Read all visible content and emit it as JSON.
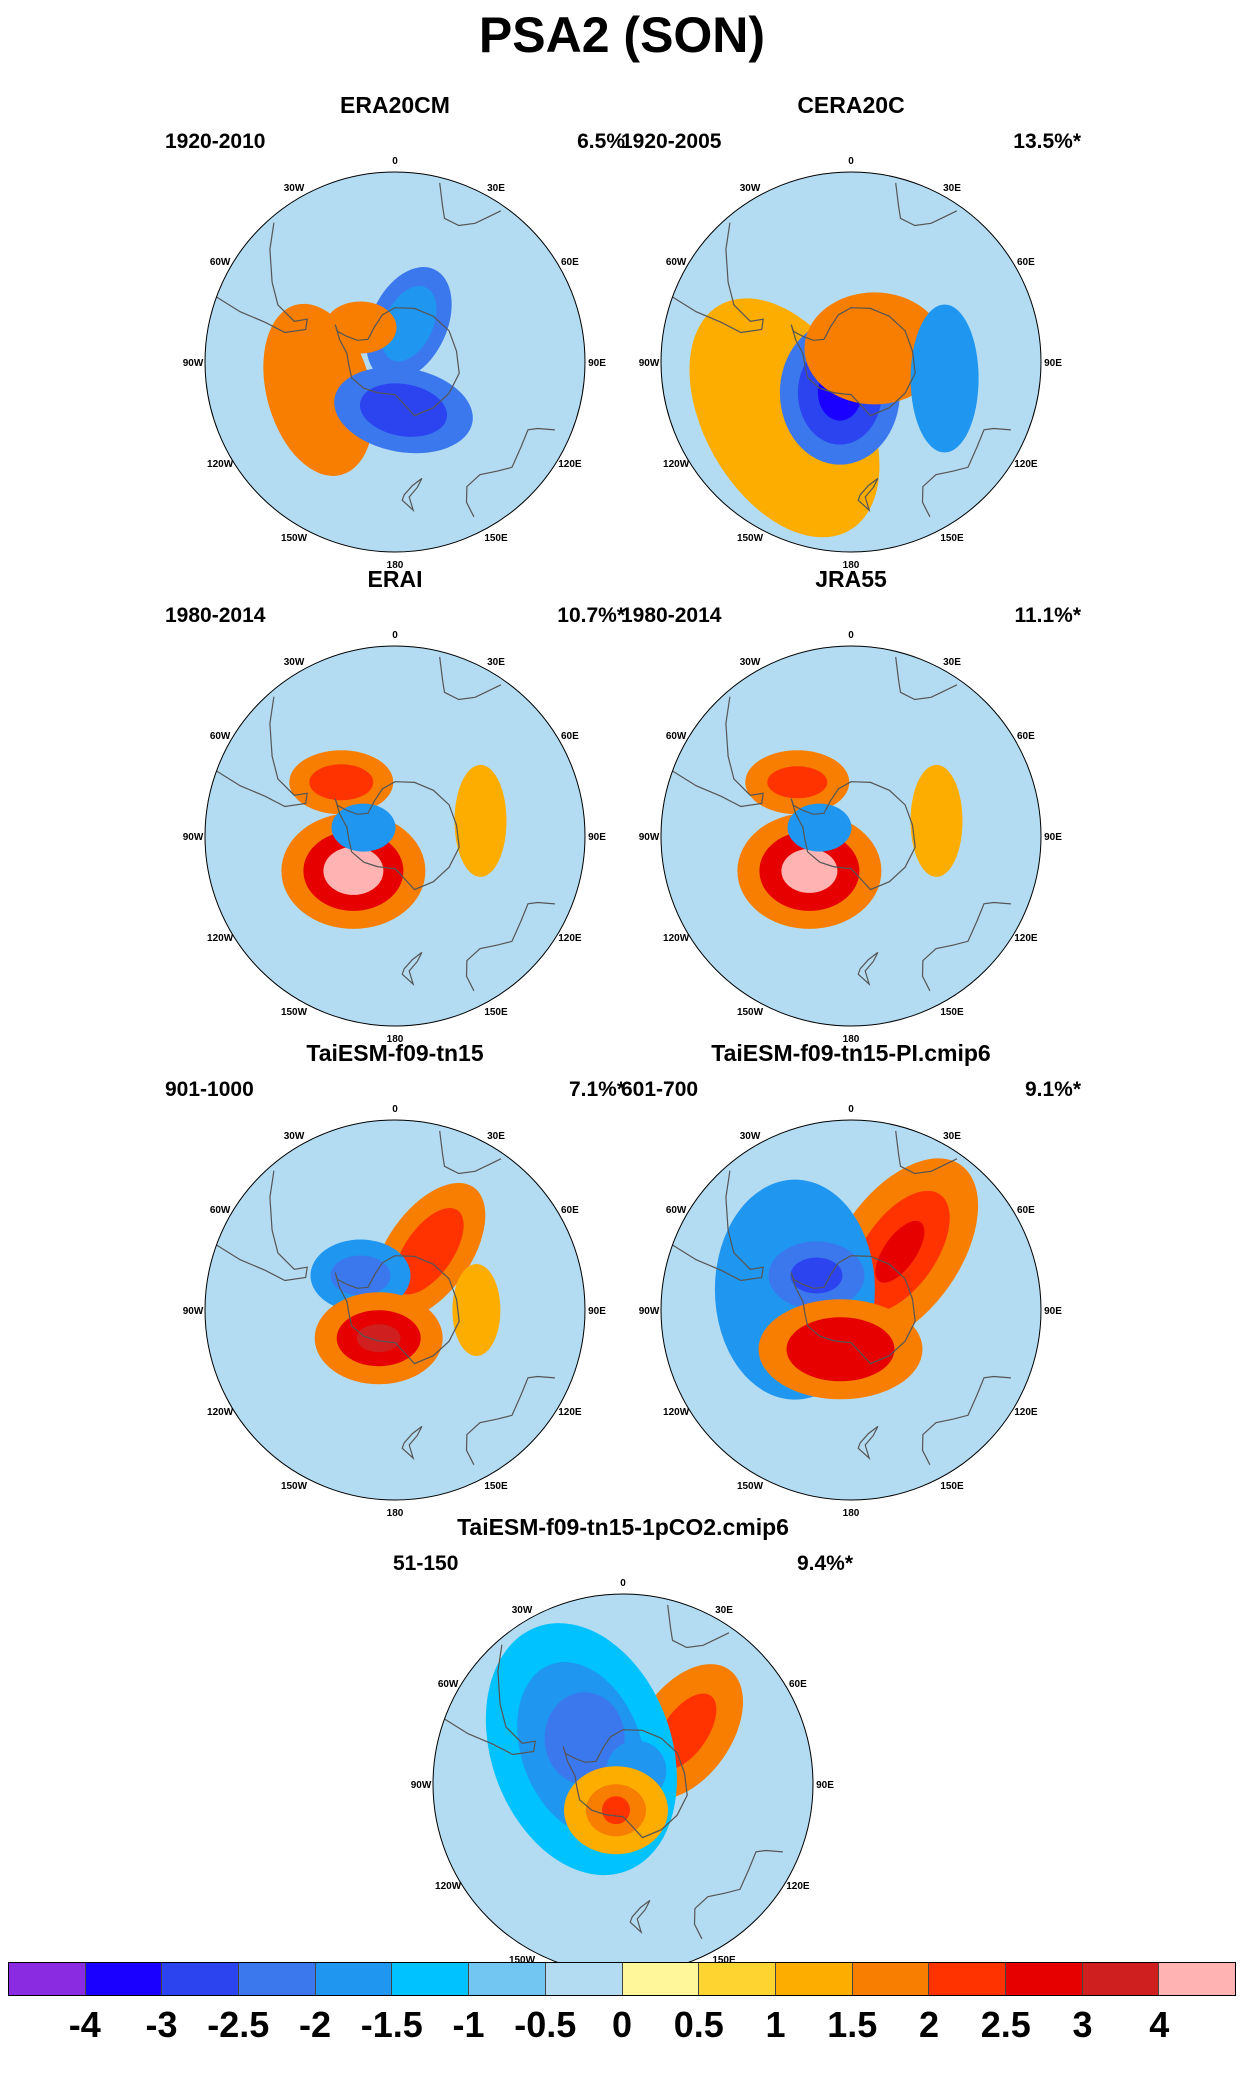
{
  "title": "PSA2 (SON)",
  "panels": [
    {
      "name": "ERA20CM",
      "period": "1920-2010",
      "variance": "6.5%",
      "blobs": [
        {
          "lat": -75,
          "lon": 20,
          "rx": 38,
          "ry": 60,
          "rot": 25,
          "level": 3
        },
        {
          "lat": -75,
          "lon": 20,
          "rx": 24,
          "ry": 40,
          "rot": 25,
          "level": 4
        },
        {
          "lat": -72,
          "lon": -45,
          "rx": 36,
          "ry": 26,
          "rot": 0,
          "level": 11
        },
        {
          "lat": -60,
          "lon": -110,
          "rx": 52,
          "ry": 88,
          "rot": -15,
          "level": 11
        },
        {
          "lat": -72,
          "lon": 170,
          "rx": 70,
          "ry": 42,
          "rot": 10,
          "level": 3
        },
        {
          "lat": -72,
          "lon": 170,
          "rx": 44,
          "ry": 26,
          "rot": 10,
          "level": 2
        }
      ]
    },
    {
      "name": "CERA20C",
      "period": "1920-2005",
      "variance": "13.5%*",
      "blobs": [
        {
          "lat": -58,
          "lon": -130,
          "rx": 80,
          "ry": 130,
          "rot": -30,
          "level": 10
        },
        {
          "lat": -78,
          "lon": -160,
          "rx": 60,
          "ry": 72,
          "rot": 0,
          "level": 3
        },
        {
          "lat": -78,
          "lon": -160,
          "rx": 42,
          "ry": 52,
          "rot": 0,
          "level": 2
        },
        {
          "lat": -78,
          "lon": -160,
          "rx": 22,
          "ry": 28,
          "rot": 0,
          "level": 1
        },
        {
          "lat": -80,
          "lon": 60,
          "rx": 70,
          "ry": 56,
          "rot": 0,
          "level": 11
        },
        {
          "lat": -55,
          "lon": 100,
          "rx": 34,
          "ry": 74,
          "rot": 0,
          "level": 4
        }
      ]
    },
    {
      "name": "ERAI",
      "period": "1980-2014",
      "variance": "10.7%*",
      "blobs": [
        {
          "lat": -62,
          "lon": -45,
          "rx": 52,
          "ry": 32,
          "rot": 0,
          "level": 11
        },
        {
          "lat": -62,
          "lon": -45,
          "rx": 32,
          "ry": 18,
          "rot": 0,
          "level": 12
        },
        {
          "lat": -70,
          "lon": -130,
          "rx": 72,
          "ry": 58,
          "rot": 0,
          "level": 11
        },
        {
          "lat": -70,
          "lon": -130,
          "rx": 50,
          "ry": 40,
          "rot": 0,
          "level": 13
        },
        {
          "lat": -70,
          "lon": -130,
          "rx": 30,
          "ry": 24,
          "rot": 0,
          "level": 15
        },
        {
          "lat": -78,
          "lon": -75,
          "rx": 32,
          "ry": 24,
          "rot": 0,
          "level": 4
        },
        {
          "lat": -58,
          "lon": 80,
          "rx": 26,
          "ry": 56,
          "rot": 0,
          "level": 10
        }
      ]
    },
    {
      "name": "JRA55",
      "period": "1980-2014",
      "variance": "11.1%*",
      "blobs": [
        {
          "lat": -62,
          "lon": -45,
          "rx": 52,
          "ry": 32,
          "rot": 0,
          "level": 11
        },
        {
          "lat": -62,
          "lon": -45,
          "rx": 30,
          "ry": 16,
          "rot": 0,
          "level": 12
        },
        {
          "lat": -70,
          "lon": -130,
          "rx": 72,
          "ry": 58,
          "rot": 0,
          "level": 11
        },
        {
          "lat": -70,
          "lon": -130,
          "rx": 50,
          "ry": 40,
          "rot": 0,
          "level": 13
        },
        {
          "lat": -70,
          "lon": -130,
          "rx": 28,
          "ry": 22,
          "rot": 0,
          "level": 15
        },
        {
          "lat": -78,
          "lon": -75,
          "rx": 32,
          "ry": 24,
          "rot": 0,
          "level": 4
        },
        {
          "lat": -58,
          "lon": 80,
          "rx": 26,
          "ry": 56,
          "rot": 0,
          "level": 10
        }
      ]
    },
    {
      "name": "TaiESM-f09-tn15",
      "period": "901-1000",
      "variance": "7.1%*",
      "blobs": [
        {
          "lat": -65,
          "lon": 30,
          "rx": 42,
          "ry": 78,
          "rot": 35,
          "level": 11
        },
        {
          "lat": -65,
          "lon": 30,
          "rx": 24,
          "ry": 50,
          "rot": 35,
          "level": 12
        },
        {
          "lat": -72,
          "lon": -45,
          "rx": 50,
          "ry": 36,
          "rot": 0,
          "level": 4
        },
        {
          "lat": -72,
          "lon": -45,
          "rx": 30,
          "ry": 20,
          "rot": 0,
          "level": 3
        },
        {
          "lat": -78,
          "lon": -150,
          "rx": 64,
          "ry": 46,
          "rot": 0,
          "level": 11
        },
        {
          "lat": -78,
          "lon": -150,
          "rx": 42,
          "ry": 28,
          "rot": 0,
          "level": 13
        },
        {
          "lat": -78,
          "lon": -150,
          "rx": 22,
          "ry": 14,
          "rot": 0,
          "level": 14
        },
        {
          "lat": -60,
          "lon": 90,
          "rx": 24,
          "ry": 46,
          "rot": 0,
          "level": 10
        }
      ]
    },
    {
      "name": "TaiESM-f09-tn15-PI.cmip6",
      "period": "601-700",
      "variance": "9.1%*",
      "blobs": [
        {
          "lat": -62,
          "lon": 40,
          "rx": 60,
          "ry": 106,
          "rot": 35,
          "level": 11
        },
        {
          "lat": -62,
          "lon": 40,
          "rx": 36,
          "ry": 70,
          "rot": 35,
          "level": 12
        },
        {
          "lat": -62,
          "lon": 40,
          "rx": 16,
          "ry": 36,
          "rot": 35,
          "level": 13
        },
        {
          "lat": -68,
          "lon": -70,
          "rx": 80,
          "ry": 110,
          "rot": 0,
          "level": 4
        },
        {
          "lat": -72,
          "lon": -45,
          "rx": 48,
          "ry": 34,
          "rot": 0,
          "level": 3
        },
        {
          "lat": -72,
          "lon": -45,
          "rx": 26,
          "ry": 18,
          "rot": 0,
          "level": 2
        },
        {
          "lat": -75,
          "lon": -165,
          "rx": 82,
          "ry": 50,
          "rot": 0,
          "level": 11
        },
        {
          "lat": -75,
          "lon": -165,
          "rx": 54,
          "ry": 32,
          "rot": 0,
          "level": 13
        }
      ]
    },
    {
      "name": "TaiESM-f09-tn15-1pCO2.cmip6",
      "period": "51-150",
      "variance": "9.4%*",
      "blobs": [
        {
          "lat": -60,
          "lon": 50,
          "rx": 46,
          "ry": 76,
          "rot": 35,
          "level": 11
        },
        {
          "lat": -60,
          "lon": 50,
          "rx": 22,
          "ry": 44,
          "rot": 35,
          "level": 12
        },
        {
          "lat": -70,
          "lon": -50,
          "rx": 90,
          "ry": 130,
          "rot": -20,
          "level": 5
        },
        {
          "lat": -70,
          "lon": -50,
          "rx": 60,
          "ry": 90,
          "rot": -20,
          "level": 4
        },
        {
          "lat": -68,
          "lon": -40,
          "rx": 40,
          "ry": 46,
          "rot": 0,
          "level": 3
        },
        {
          "lat": -83,
          "lon": 45,
          "rx": 30,
          "ry": 30,
          "rot": 0,
          "level": 4
        },
        {
          "lat": -80,
          "lon": -165,
          "rx": 52,
          "ry": 44,
          "rot": 0,
          "level": 10
        },
        {
          "lat": -80,
          "lon": -165,
          "rx": 30,
          "ry": 26,
          "rot": 0,
          "level": 11
        },
        {
          "lat": -80,
          "lon": -165,
          "rx": 14,
          "ry": 14,
          "rot": 0,
          "level": 12
        }
      ]
    }
  ],
  "longitude_labels": [
    "0",
    "30E",
    "60E",
    "90E",
    "120E",
    "150E",
    "180",
    "150W",
    "120W",
    "90W",
    "60W",
    "30W"
  ],
  "colorbar": {
    "levels": [
      "-4",
      "-3",
      "-2.5",
      "-2",
      "-1.5",
      "-1",
      "-0.5",
      "0",
      "0.5",
      "1",
      "1.5",
      "2",
      "2.5",
      "3",
      "4"
    ],
    "colors": [
      "#8a2be2",
      "#1a00ff",
      "#2b44ef",
      "#3b78ee",
      "#1f96f0",
      "#00c2ff",
      "#72c6f2",
      "#b3dcf2",
      "#fff799",
      "#fdd430",
      "#fdac00",
      "#f77e00",
      "#ff3300",
      "#e60000",
      "#cf1f1f",
      "#ffb3b3"
    ]
  }
}
